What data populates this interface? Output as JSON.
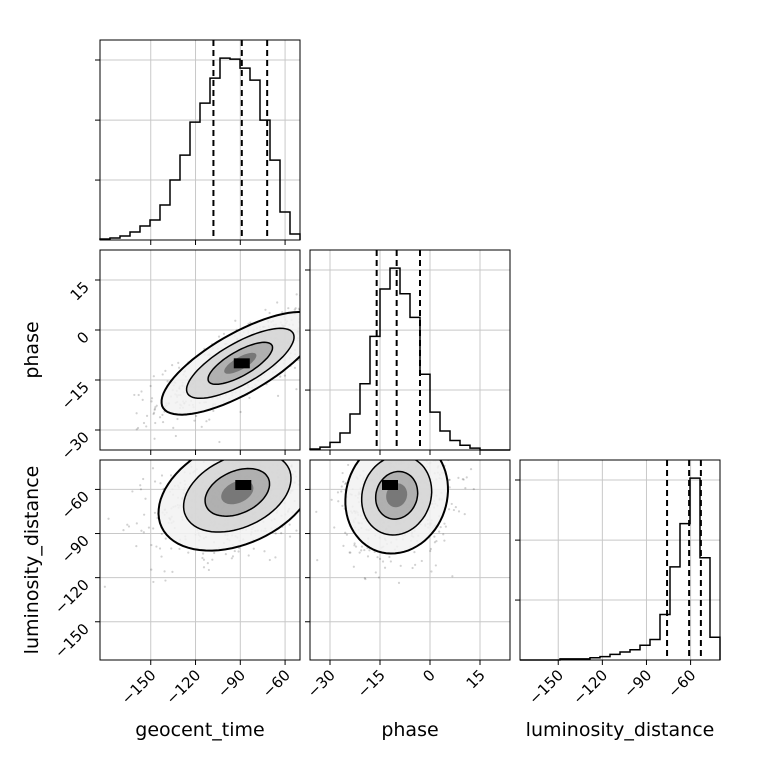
{
  "chart_data": {
    "type": "corner",
    "variables": [
      "geocent_time",
      "phase",
      "luminosity_distance"
    ],
    "axes": {
      "geocent_time": {
        "range": [
          -184,
          -50
        ],
        "ticks": [
          -150,
          -120,
          -90,
          -60
        ],
        "tick_labels": [
          "−150",
          "−120",
          "−90",
          "−60"
        ]
      },
      "phase": {
        "range": [
          -36,
          24
        ],
        "ticks": [
          -30,
          -15,
          0,
          15
        ],
        "tick_labels": [
          "−30",
          "−15",
          "0",
          "15"
        ]
      },
      "luminosity_distance": {
        "range": [
          -176,
          -40
        ],
        "ticks": [
          -150,
          -120,
          -90,
          -60
        ],
        "tick_labels": [
          "−150",
          "−120",
          "−90",
          "−60"
        ]
      }
    },
    "grid": true,
    "histograms": {
      "geocent_time": {
        "bin_edges": [
          -184,
          -177.3,
          -170.6,
          -163.9,
          -157.2,
          -150.5,
          -143.8,
          -137.1,
          -130.4,
          -123.7,
          -117,
          -110.3,
          -103.6,
          -96.9,
          -90.2,
          -83.5,
          -76.8,
          -70.1,
          -63.4,
          -56.7,
          -50
        ],
        "counts": [
          1,
          2,
          4,
          8,
          14,
          20,
          35,
          60,
          85,
          118,
          137,
          162,
          182,
          181,
          172,
          160,
          120,
          80,
          28,
          6
        ],
        "quantiles": [
          -108,
          -89,
          -72
        ]
      },
      "phase": {
        "bin_edges": [
          -36,
          -33,
          -30,
          -27,
          -24,
          -21,
          -18,
          -15,
          -12,
          -9,
          -6,
          -3,
          0,
          3,
          6,
          9,
          12,
          15,
          18,
          21,
          24
        ],
        "counts": [
          1,
          3,
          8,
          18,
          38,
          70,
          120,
          170,
          192,
          165,
          140,
          80,
          40,
          20,
          10,
          5,
          2,
          0,
          0,
          0
        ],
        "quantiles": [
          -16,
          -10,
          -3
        ]
      },
      "luminosity_distance": {
        "bin_edges": [
          -176,
          -169.2,
          -162.4,
          -155.6,
          -148.8,
          -142,
          -135.2,
          -128.4,
          -121.6,
          -114.8,
          -108,
          -101.2,
          -94.4,
          -87.6,
          -80.8,
          -74,
          -67.2,
          -60.4,
          -53.6,
          -46.8,
          -40
        ],
        "counts": [
          0,
          0,
          0,
          0,
          1,
          1,
          1,
          2,
          3,
          5,
          7,
          9,
          13,
          18,
          40,
          82,
          120,
          160,
          90,
          20
        ],
        "quantiles": [
          -76,
          -61,
          -53
        ]
      }
    },
    "joint_2d": [
      {
        "x": "geocent_time",
        "y": "phase",
        "mean": [
          -90,
          -10
        ],
        "sd": [
          24,
          7
        ],
        "corr": 0.75,
        "peak": [
          -89,
          -10
        ]
      },
      {
        "x": "geocent_time",
        "y": "luminosity_distance",
        "mean": [
          -92,
          -62
        ],
        "sd": [
          24,
          18
        ],
        "corr": 0.35,
        "peak": [
          -88,
          -57
        ]
      },
      {
        "x": "phase",
        "y": "luminosity_distance",
        "mean": [
          -10,
          -64
        ],
        "sd": [
          7,
          18
        ],
        "corr": 0.1,
        "peak": [
          -12,
          -57
        ]
      }
    ]
  }
}
